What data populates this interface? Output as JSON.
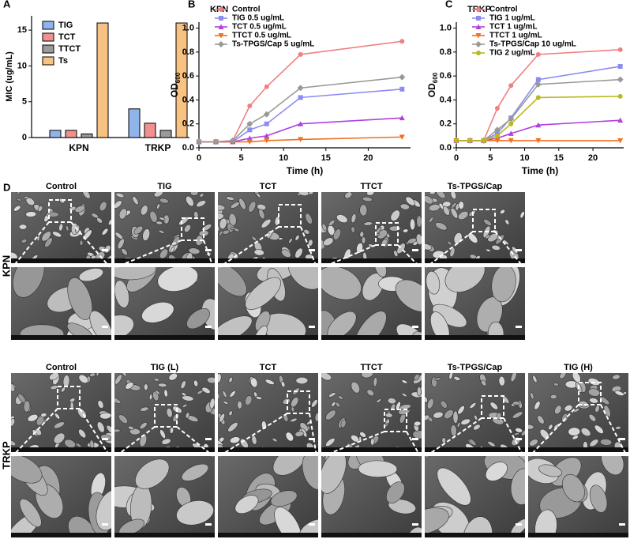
{
  "chart_data": [
    {
      "type": "bar",
      "panel": "A",
      "ylabel": "MIC (ug/mL)",
      "categories": [
        "KPN",
        "TRKP"
      ],
      "series": [
        {
          "name": "TIG",
          "color": "#8fb4ea",
          "values": [
            1,
            4
          ]
        },
        {
          "name": "TCT",
          "color": "#f29090",
          "values": [
            1,
            2
          ]
        },
        {
          "name": "TTCT",
          "color": "#9a9a9a",
          "values": [
            0.5,
            1
          ]
        },
        {
          "name": "Ts",
          "color": "#f8c282",
          "values": [
            16,
            16
          ]
        }
      ],
      "ylim": [
        0,
        17
      ],
      "yticks": [
        0,
        5,
        10,
        15
      ],
      "legend": "top-left"
    },
    {
      "type": "line",
      "panel": "B",
      "title": "KPN",
      "xlabel": "Time (h)",
      "ylabel": "OD",
      "ylabel_subscript": "600",
      "x": [
        0,
        2,
        4,
        6,
        8,
        12,
        24
      ],
      "series": [
        {
          "name": "Control",
          "color": "#f08080",
          "marker": "circle",
          "values": [
            0.05,
            0.05,
            0.06,
            0.35,
            0.51,
            0.78,
            0.89
          ]
        },
        {
          "name": "TIG 0.5 ug/mL",
          "color": "#8c8cf0",
          "marker": "square",
          "values": [
            0.05,
            0.05,
            0.05,
            0.15,
            0.2,
            0.42,
            0.49
          ]
        },
        {
          "name": "TCT 0.5 ug/mL",
          "color": "#b040e0",
          "marker": "triangle",
          "values": [
            0.05,
            0.05,
            0.05,
            0.08,
            0.1,
            0.2,
            0.25
          ]
        },
        {
          "name": "TTCT 0.5 ug/mL",
          "color": "#f07020",
          "marker": "triangle-down",
          "values": [
            0.05,
            0.05,
            0.05,
            0.05,
            0.06,
            0.07,
            0.09
          ]
        },
        {
          "name": "Ts-TPGS/Cap 5 ug/mL",
          "color": "#999999",
          "marker": "diamond",
          "values": [
            0.05,
            0.05,
            0.06,
            0.2,
            0.28,
            0.5,
            0.59
          ]
        }
      ],
      "xlim": [
        0,
        25
      ],
      "xticks": [
        0,
        5,
        10,
        15,
        20
      ],
      "ylim": [
        0,
        1.05
      ],
      "yticks": [
        {
          "value": 0,
          "label": "0.0"
        },
        0.2,
        0.4,
        0.6,
        0.8,
        {
          "value": 1,
          "label": "1.0"
        }
      ],
      "legend": "top-left"
    },
    {
      "type": "line",
      "panel": "C",
      "title": "TRKP",
      "xlabel": "Time (h)",
      "ylabel": "OD",
      "ylabel_subscript": "600",
      "x": [
        0,
        2,
        4,
        6,
        8,
        12,
        24
      ],
      "series": [
        {
          "name": "Control",
          "color": "#f08080",
          "marker": "circle",
          "values": [
            0.06,
            0.06,
            0.06,
            0.33,
            0.52,
            0.78,
            0.82
          ]
        },
        {
          "name": "TIG 1 ug/mL",
          "color": "#8c8cf0",
          "marker": "square",
          "values": [
            0.06,
            0.06,
            0.06,
            0.12,
            0.25,
            0.57,
            0.68
          ]
        },
        {
          "name": "TCT 1 ug/mL",
          "color": "#b040e0",
          "marker": "triangle",
          "values": [
            0.06,
            0.06,
            0.06,
            0.08,
            0.12,
            0.19,
            0.23
          ]
        },
        {
          "name": "TTCT 1 ug/mL",
          "color": "#f07020",
          "marker": "triangle-down",
          "values": [
            0.06,
            0.06,
            0.06,
            0.06,
            0.06,
            0.06,
            0.06
          ]
        },
        {
          "name": "Ts-TPGS/Cap 10 ug/mL",
          "color": "#999999",
          "marker": "diamond",
          "values": [
            0.06,
            0.06,
            0.06,
            0.15,
            0.24,
            0.53,
            0.57
          ]
        },
        {
          "name": "TIG 2 ug/mL",
          "color": "#b8b820",
          "marker": "circle",
          "values": [
            0.06,
            0.06,
            0.06,
            0.1,
            0.2,
            0.42,
            0.43
          ]
        }
      ],
      "xlim": [
        0,
        24.5
      ],
      "xticks": [
        0,
        5,
        10,
        15,
        20
      ],
      "ylim": [
        0,
        1.05
      ],
      "yticks": [
        {
          "value": 0,
          "label": "0.0"
        },
        0.2,
        0.4,
        0.6,
        0.8,
        {
          "value": 1,
          "label": "1.0"
        }
      ],
      "legend": "top-left"
    }
  ],
  "micrographs": {
    "panel": "D",
    "rows": [
      {
        "label": "KPN",
        "columns": [
          "Control",
          "TIG",
          "TCT",
          "TTCT",
          "Ts-TPGS/Cap"
        ]
      },
      {
        "label": "TRKP",
        "columns": [
          "Control",
          "TIG (L)",
          "TCT",
          "TTCT",
          "Ts-TPGS/Cap",
          "TIG (H)"
        ]
      }
    ]
  }
}
